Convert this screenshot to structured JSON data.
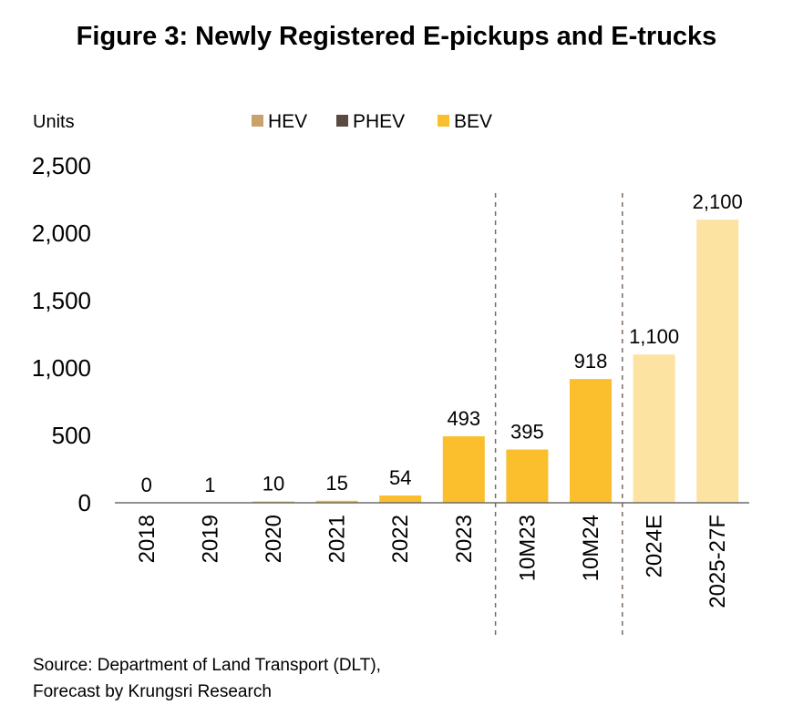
{
  "chart_data": {
    "type": "bar",
    "title": "Figure 3: Newly Registered E-pickups and E-trucks",
    "ylabel": "Units",
    "ylim": [
      0,
      2500
    ],
    "yticks": [
      0,
      500,
      1000,
      1500,
      2000,
      2500
    ],
    "ytick_labels": [
      "0",
      "500",
      "1,000",
      "1,500",
      "2,000",
      "2,500"
    ],
    "legend_position": "top",
    "grid": false,
    "categories": [
      "2018",
      "2019",
      "2020",
      "2021",
      "2022",
      "2023",
      "10M23",
      "10M24",
      "2024E",
      "2025-27F"
    ],
    "series": [
      {
        "name": "HEV",
        "color": "#c9a26b",
        "values": [
          0,
          0,
          0,
          0,
          0,
          0,
          0,
          0,
          0,
          0
        ]
      },
      {
        "name": "PHEV",
        "color": "#5a4a42",
        "values": [
          0,
          0,
          0,
          0,
          0,
          0,
          0,
          0,
          0,
          0
        ]
      },
      {
        "name": "BEV",
        "color": "#fbbe2c",
        "values": [
          0,
          1,
          10,
          15,
          54,
          493,
          395,
          918,
          1100,
          2100
        ]
      }
    ],
    "data_labels": [
      "0",
      "1",
      "10",
      "15",
      "54",
      "493",
      "395",
      "918",
      "1,100",
      "2,100"
    ],
    "forecast_color": "#fde3a1",
    "forecast_categories": [
      "2024E",
      "2025-27F"
    ],
    "separators_after": [
      "2023",
      "10M24"
    ]
  },
  "source": {
    "line1": "Source: Department of Land Transport (DLT),",
    "line2": "Forecast by Krungsri Research"
  }
}
